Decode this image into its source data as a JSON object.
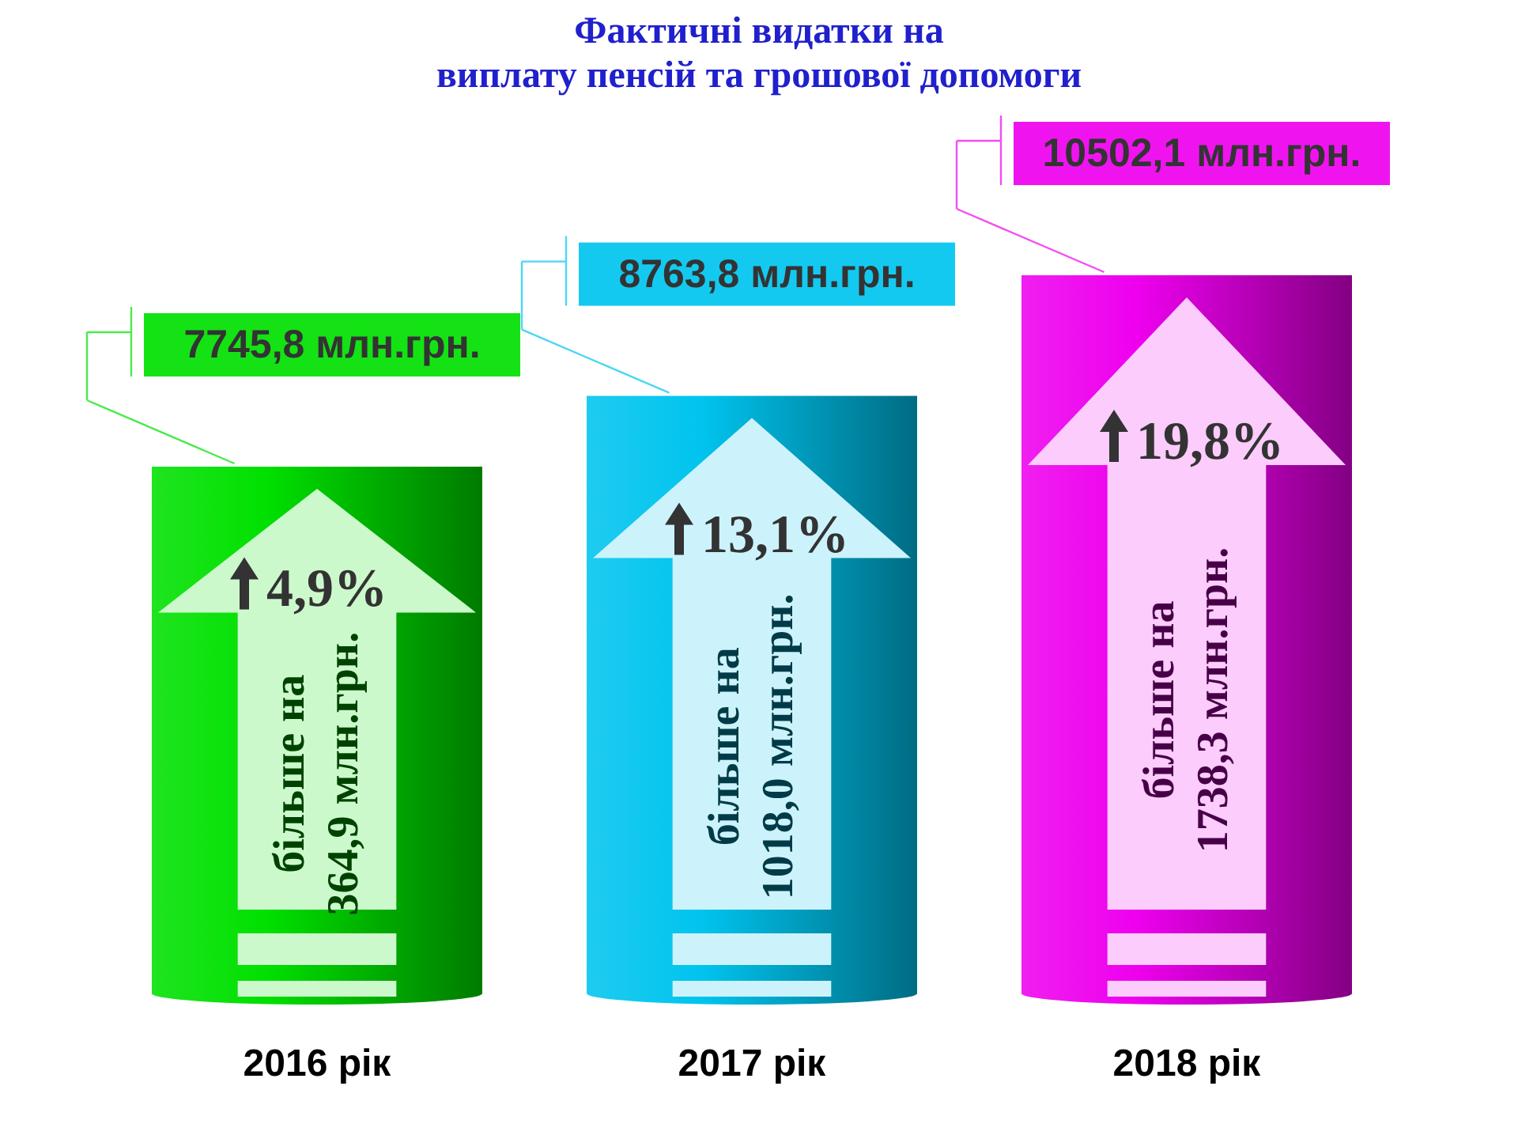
{
  "chart_data": {
    "type": "bar",
    "title": "Фактичні видатки на\nвиплату пенсій та грошової допомоги",
    "categories": [
      "2016 рік",
      "2017 рік",
      "2018 рік"
    ],
    "values": [
      7745.8,
      8763.8,
      10502.1
    ],
    "colors": [
      "#00e000",
      "#00c4ee",
      "#ee00ee"
    ],
    "value_labels": [
      "7745,8 млн.грн.",
      "8763,8 млн.грн.",
      "10502,1 млн.грн."
    ],
    "annotations": [
      "4,9%",
      "більше на\n364,9 млн.грн.",
      "13,1%",
      "більше на\n1018,0 млн.грн.",
      "19,8%",
      "більше на\n1738,3 млн.грн."
    ]
  }
}
